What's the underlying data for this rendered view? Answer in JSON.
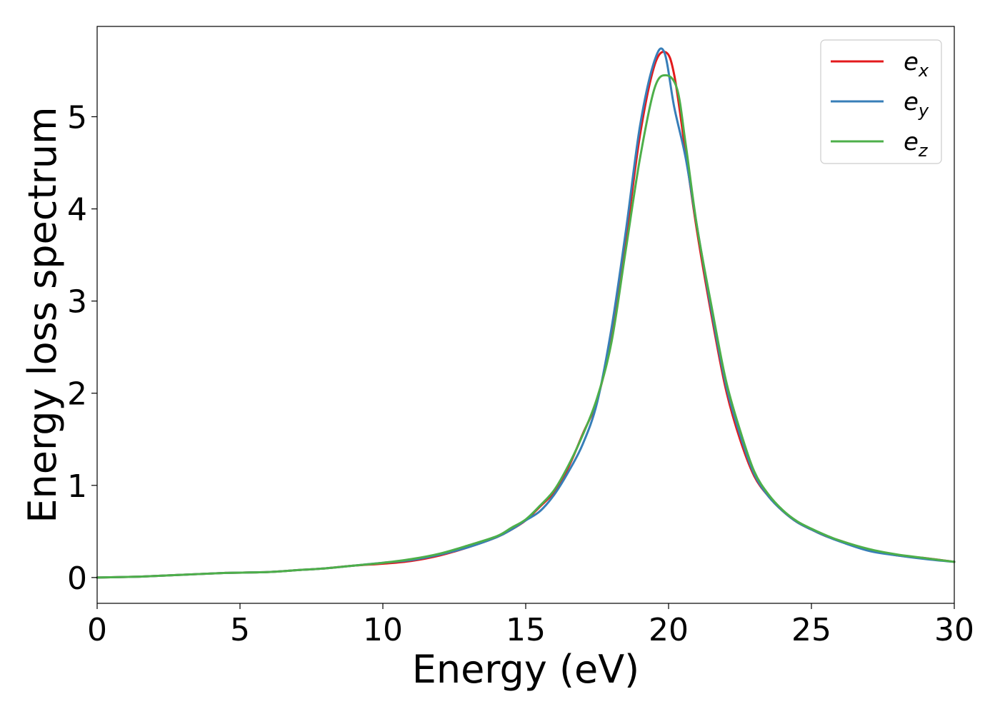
{
  "chart_data": {
    "type": "line",
    "title": "",
    "xlabel": "Energy (eV)",
    "ylabel": "Energy loss spectrum",
    "xlim": [
      0,
      30
    ],
    "ylim": [
      -0.28,
      5.98
    ],
    "xticks": [
      0,
      5,
      10,
      15,
      20,
      25,
      30
    ],
    "yticks": [
      0,
      1,
      2,
      3,
      4,
      5
    ],
    "grid": false,
    "legend_position": "top-right",
    "series": [
      {
        "name": "e",
        "subscript": "x",
        "color": "#e31a1c",
        "x": [
          0,
          1.5,
          3,
          4.5,
          6,
          7,
          8,
          9,
          10,
          11,
          12,
          13,
          14,
          14.5,
          15,
          15.5,
          16,
          16.5,
          17,
          17.5,
          18,
          18.5,
          19,
          19.5,
          19.9,
          20.2,
          20.6,
          21,
          21.5,
          22,
          22.5,
          23,
          23.5,
          24,
          24.5,
          25,
          25.5,
          26,
          27,
          28,
          29,
          30
        ],
        "y": [
          0,
          0.01,
          0.03,
          0.05,
          0.06,
          0.08,
          0.1,
          0.13,
          0.15,
          0.18,
          0.24,
          0.33,
          0.44,
          0.52,
          0.62,
          0.77,
          0.93,
          1.2,
          1.56,
          1.93,
          2.6,
          3.65,
          4.8,
          5.55,
          5.7,
          5.45,
          4.6,
          3.75,
          2.85,
          2.05,
          1.5,
          1.1,
          0.88,
          0.72,
          0.6,
          0.52,
          0.45,
          0.4,
          0.3,
          0.24,
          0.21,
          0.17
        ]
      },
      {
        "name": "e",
        "subscript": "y",
        "color": "#377eb8",
        "x": [
          0,
          1.5,
          3,
          4.5,
          6,
          7,
          8,
          9,
          10,
          11,
          12,
          13,
          14,
          14.5,
          15,
          15.5,
          16,
          16.5,
          17,
          17.5,
          18,
          18.5,
          19,
          19.5,
          19.85,
          20.2,
          20.6,
          21,
          21.5,
          22,
          22.5,
          23,
          23.5,
          24,
          24.5,
          25,
          25.5,
          26,
          27,
          28,
          29,
          30
        ],
        "y": [
          0,
          0.01,
          0.03,
          0.05,
          0.06,
          0.08,
          0.1,
          0.13,
          0.16,
          0.19,
          0.25,
          0.33,
          0.44,
          0.52,
          0.62,
          0.72,
          0.9,
          1.15,
          1.45,
          1.9,
          2.7,
          3.75,
          4.9,
          5.6,
          5.7,
          5.1,
          4.55,
          3.8,
          2.9,
          2.1,
          1.55,
          1.12,
          0.88,
          0.72,
          0.6,
          0.52,
          0.45,
          0.39,
          0.29,
          0.24,
          0.2,
          0.17
        ]
      },
      {
        "name": "e",
        "subscript": "z",
        "color": "#4daf4a",
        "x": [
          0,
          1.5,
          3,
          4.5,
          6,
          7,
          8,
          9,
          10,
          11,
          12,
          13,
          14,
          14.5,
          15,
          15.5,
          16,
          16.5,
          17,
          17.5,
          18,
          18.5,
          19,
          19.5,
          19.9,
          20.3,
          20.6,
          21,
          21.5,
          22,
          22.5,
          23,
          23.5,
          24,
          24.5,
          25,
          25.5,
          26,
          27,
          28,
          29,
          30
        ],
        "y": [
          0,
          0.01,
          0.03,
          0.05,
          0.06,
          0.08,
          0.1,
          0.13,
          0.16,
          0.2,
          0.26,
          0.35,
          0.45,
          0.54,
          0.63,
          0.78,
          0.95,
          1.22,
          1.55,
          1.95,
          2.55,
          3.55,
          4.55,
          5.3,
          5.45,
          5.3,
          4.7,
          3.8,
          2.95,
          2.15,
          1.6,
          1.15,
          0.9,
          0.73,
          0.61,
          0.53,
          0.46,
          0.4,
          0.31,
          0.25,
          0.21,
          0.17
        ]
      }
    ]
  }
}
